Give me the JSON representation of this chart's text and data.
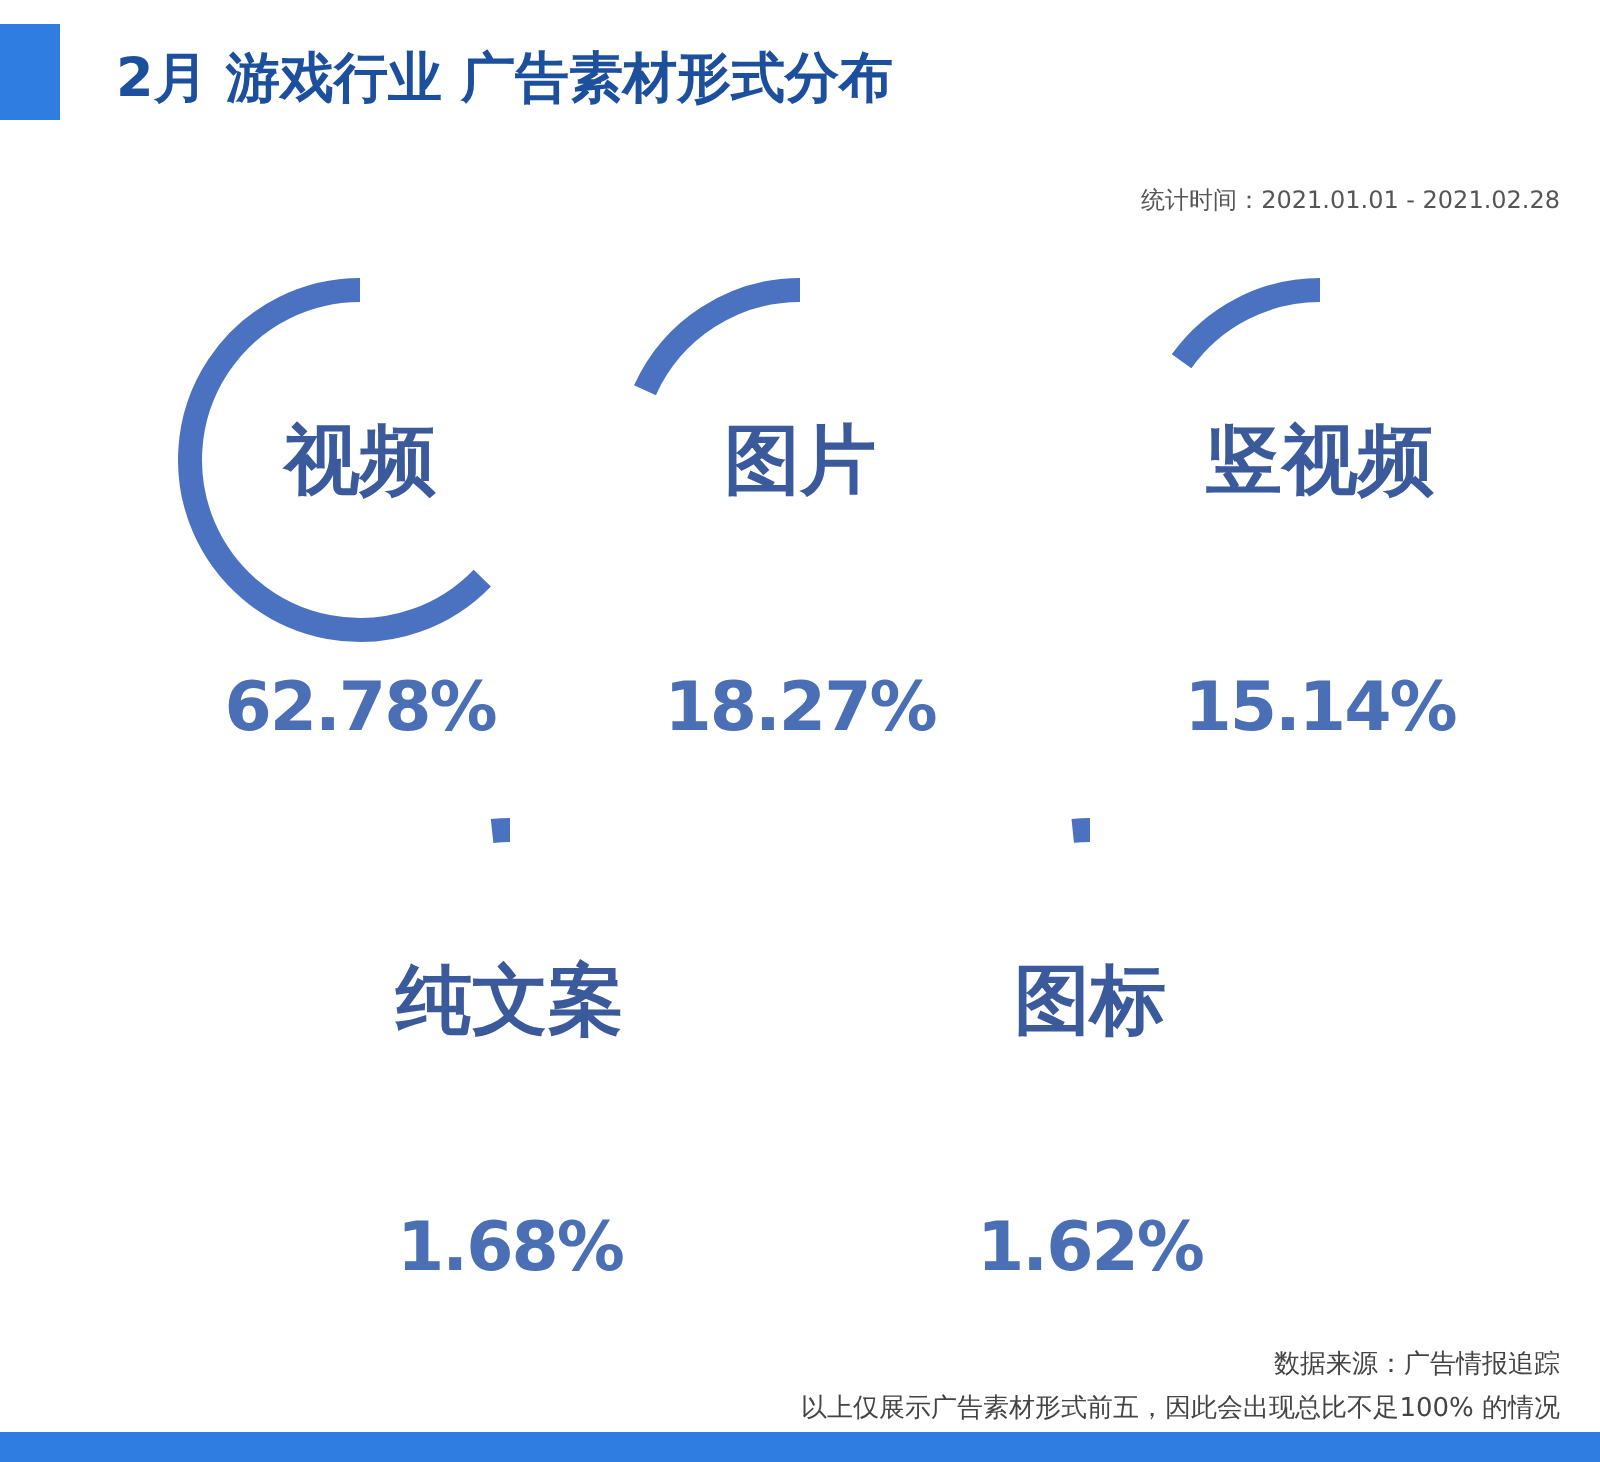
{
  "chart_data": {
    "type": "other",
    "title": "2月 游戏行业 广告素材形式分布",
    "subtitle": "统计时间：2021.01.01 - 2021.02.28",
    "categories": [
      "视频",
      "图片",
      "竖视频",
      "纯文案",
      "图标"
    ],
    "values": [
      62.78,
      18.27,
      15.14,
      1.68,
      1.62
    ],
    "value_labels": [
      "62.78%",
      "18.27%",
      "15.14%",
      "1.68%",
      "1.62%"
    ],
    "color": "#4a72c0",
    "annotations": [
      "数据来源：广告情报追踪",
      "以上仅展示广告素材形式前五，因此会出现总比不足100% 的情况"
    ]
  }
}
